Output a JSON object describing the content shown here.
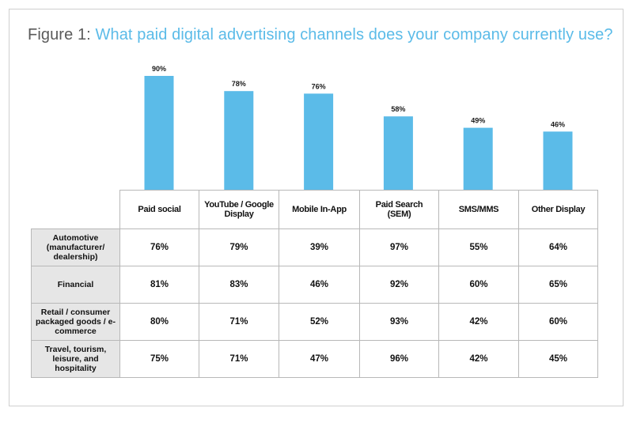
{
  "figure": {
    "prefix": "Figure 1:",
    "question": "What paid digital advertising channels does your company currently use?"
  },
  "colors": {
    "bar": "#5bbbe8",
    "title_accent": "#5bbbe8",
    "row_header_bg": "#e6e6e6"
  },
  "chart_data": {
    "type": "bar",
    "title": "What paid digital advertising channels does your company currently use?",
    "categories": [
      "Paid social",
      "YouTube / Google Display",
      "Mobile In-App",
      "Paid Search (SEM)",
      "SMS/MMS",
      "Other Display"
    ],
    "values": [
      90,
      78,
      76,
      58,
      49,
      46
    ],
    "value_labels": [
      "90%",
      "78%",
      "76%",
      "58%",
      "49%",
      "46%"
    ],
    "ylim": [
      0,
      100
    ],
    "grid": false,
    "legend": "none"
  },
  "table": {
    "columns": [
      "Paid social",
      "YouTube / Google Display",
      "Mobile In-App",
      "Paid Search (SEM)",
      "SMS/MMS",
      "Other Display"
    ],
    "rows": [
      {
        "label": "Automotive (manufacturer/ dealership)",
        "values": [
          "76%",
          "79%",
          "39%",
          "97%",
          "55%",
          "64%"
        ]
      },
      {
        "label": "Financial",
        "values": [
          "81%",
          "83%",
          "46%",
          "92%",
          "60%",
          "65%"
        ]
      },
      {
        "label": "Retail / consumer packaged goods / e-commerce",
        "values": [
          "80%",
          "71%",
          "52%",
          "93%",
          "42%",
          "60%"
        ]
      },
      {
        "label": "Travel, tourism, leisure, and hospitality",
        "values": [
          "75%",
          "71%",
          "47%",
          "96%",
          "42%",
          "45%"
        ]
      }
    ]
  }
}
